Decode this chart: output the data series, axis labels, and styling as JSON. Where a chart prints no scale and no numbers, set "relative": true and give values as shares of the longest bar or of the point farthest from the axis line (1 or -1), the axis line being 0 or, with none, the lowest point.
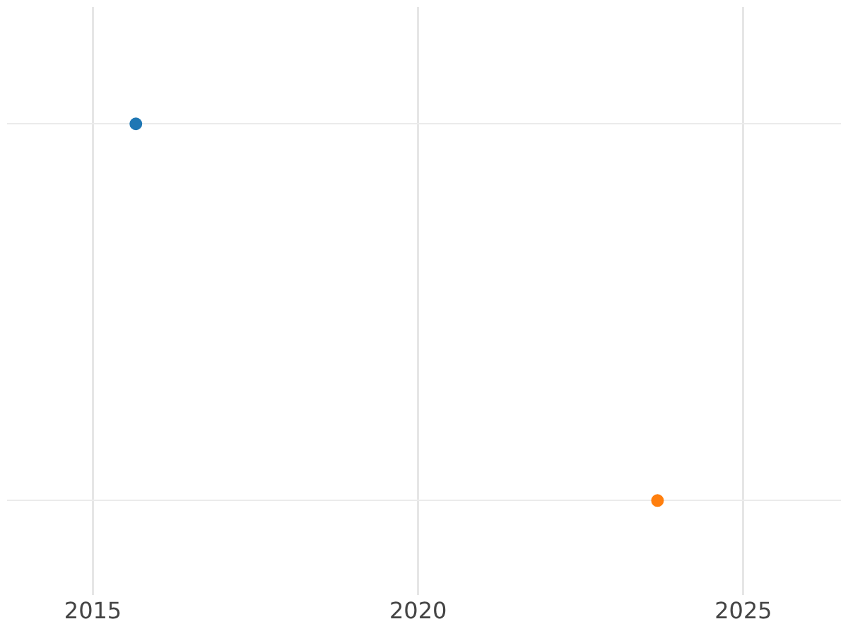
{
  "chart_data": {
    "type": "scatter",
    "relative": true,
    "x": [
      2015.66,
      2023.68
    ],
    "values": [
      1,
      0
    ],
    "colors": [
      "#1f77b4",
      "#ff7f0e"
    ],
    "xlim": [
      2013.68,
      2026.5
    ],
    "xticks": [
      2015,
      2020,
      2025
    ],
    "grid": true,
    "marker": "circle"
  }
}
